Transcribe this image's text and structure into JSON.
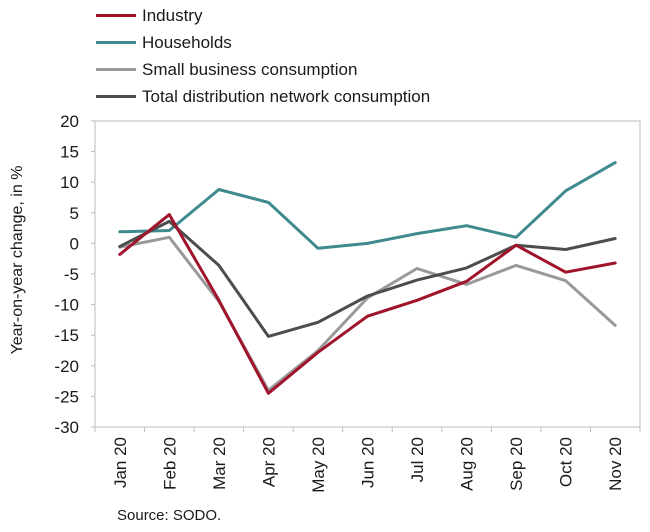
{
  "chart_data": {
    "type": "line",
    "categories": [
      "Jan 20",
      "Feb 20",
      "Mar 20",
      "Apr 20",
      "May 20",
      "Jun 20",
      "Jul 20",
      "Aug 20",
      "Sep 20",
      "Oct 20",
      "Nov 20"
    ],
    "series": [
      {
        "name": "Industry",
        "color": "#a0142b",
        "values": [
          -1.8,
          4.7,
          -9.3,
          -24.5,
          -17.8,
          -11.9,
          -9.3,
          -6.2,
          -0.3,
          -4.7,
          -3.2
        ]
      },
      {
        "name": "Households",
        "color": "#3e8a8f",
        "values": [
          1.9,
          2.1,
          8.8,
          6.7,
          -0.8,
          0.0,
          1.6,
          2.9,
          1.0,
          8.6,
          13.2
        ]
      },
      {
        "name": "Small business consumption",
        "color": "#999999",
        "values": [
          -0.6,
          1.0,
          -9.5,
          -24.0,
          -17.5,
          -8.9,
          -4.1,
          -6.7,
          -3.6,
          -6.1,
          -13.4
        ]
      },
      {
        "name": "Total distribution network consumption",
        "color": "#4d4d4d",
        "values": [
          -0.5,
          3.6,
          -3.6,
          -15.2,
          -12.9,
          -8.6,
          -6.0,
          -4.0,
          -0.3,
          -1.0,
          0.8
        ]
      }
    ],
    "ylabel": "Year-on-year change, in %",
    "ylim": [
      -30,
      20
    ],
    "yticks": [
      20,
      15,
      10,
      5,
      0,
      -5,
      -10,
      -15,
      -20,
      -25,
      -30
    ],
    "grid": false,
    "legend": "top-left"
  },
  "source": "Source: SODO."
}
